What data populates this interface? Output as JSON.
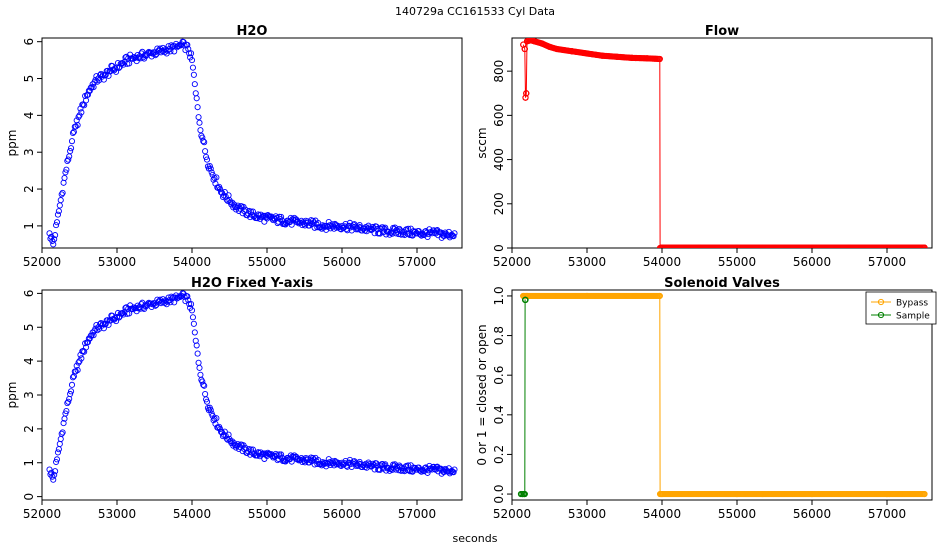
{
  "page": {
    "title": "140729a    CC161533   Cyl Data",
    "xlabel": "seconds"
  },
  "legend": {
    "items": [
      {
        "label": "Bypass",
        "color": "#FFA500"
      },
      {
        "label": "Sample",
        "color": "#008000"
      }
    ]
  },
  "chart_data": [
    {
      "id": "h2o",
      "type": "scatter",
      "title": "H2O",
      "xlabel": "",
      "ylabel": "ppm",
      "xlim": [
        52000,
        57600
      ],
      "ylim": [
        0.4,
        6.1
      ],
      "xticks": [
        52000,
        53000,
        54000,
        55000,
        56000,
        57000
      ],
      "yticks": [
        1,
        2,
        3,
        4,
        5,
        6
      ],
      "series": [
        {
          "color": "#0000FF",
          "marker": "open-circle",
          "x": [
            52100,
            52150,
            52200,
            52250,
            52300,
            52350,
            52400,
            52450,
            52500,
            52550,
            52600,
            52650,
            52700,
            52750,
            52800,
            52850,
            52900,
            53000,
            53100,
            53200,
            53300,
            53400,
            53500,
            53600,
            53700,
            53800,
            53850,
            53900,
            53950,
            54000,
            54050,
            54100,
            54150,
            54200,
            54300,
            54400,
            54500,
            54600,
            54700,
            54800,
            55000,
            55200,
            55400,
            55600,
            55800,
            56000,
            56200,
            56400,
            56600,
            56800,
            57000,
            57200,
            57400,
            57500
          ],
          "y": [
            0.8,
            0.5,
            1.1,
            1.7,
            2.3,
            2.8,
            3.3,
            3.7,
            4.0,
            4.3,
            4.55,
            4.75,
            4.9,
            5.0,
            5.05,
            5.1,
            5.2,
            5.3,
            5.45,
            5.55,
            5.6,
            5.65,
            5.7,
            5.75,
            5.8,
            5.85,
            5.9,
            5.9,
            5.8,
            5.5,
            4.6,
            3.8,
            3.3,
            2.8,
            2.3,
            1.9,
            1.7,
            1.5,
            1.4,
            1.3,
            1.2,
            1.15,
            1.1,
            1.05,
            1.0,
            1.0,
            0.95,
            0.9,
            0.85,
            0.85,
            0.8,
            0.8,
            0.75,
            0.8
          ]
        }
      ]
    },
    {
      "id": "flow",
      "type": "line",
      "title": "Flow",
      "xlabel": "",
      "ylabel": "sccm",
      "xlim": [
        52000,
        57600
      ],
      "ylim": [
        0,
        950
      ],
      "xticks": [
        52000,
        53000,
        54000,
        55000,
        56000,
        57000
      ],
      "yticks": [
        0,
        200,
        400,
        600,
        800
      ],
      "series": [
        {
          "color": "#FF0000",
          "marker": "open-circle",
          "x": [
            52150,
            52170,
            52180,
            52190,
            52200,
            52250,
            52300,
            52400,
            52500,
            52600,
            52800,
            53000,
            53200,
            53400,
            53600,
            53800,
            53970,
            53975,
            54000,
            54500,
            55000,
            55500,
            56000,
            56500,
            57000,
            57500
          ],
          "y": [
            920,
            900,
            680,
            700,
            935,
            940,
            935,
            925,
            910,
            900,
            890,
            880,
            870,
            865,
            860,
            858,
            855,
            0,
            2,
            2,
            2,
            2,
            2,
            2,
            2,
            2
          ]
        }
      ]
    },
    {
      "id": "h2o-fixed",
      "type": "scatter",
      "title": "H2O Fixed Y-axis",
      "xlabel": "",
      "ylabel": "ppm",
      "xlim": [
        52000,
        57600
      ],
      "ylim": [
        -0.1,
        6.1
      ],
      "xticks": [
        52000,
        53000,
        54000,
        55000,
        56000,
        57000
      ],
      "yticks": [
        0,
        1,
        2,
        3,
        4,
        5,
        6
      ],
      "series": [
        {
          "color": "#0000FF",
          "marker": "open-circle",
          "x": [
            52100,
            52150,
            52200,
            52250,
            52300,
            52350,
            52400,
            52450,
            52500,
            52550,
            52600,
            52650,
            52700,
            52750,
            52800,
            52850,
            52900,
            53000,
            53100,
            53200,
            53300,
            53400,
            53500,
            53600,
            53700,
            53800,
            53850,
            53900,
            53950,
            54000,
            54050,
            54100,
            54150,
            54200,
            54300,
            54400,
            54500,
            54600,
            54700,
            54800,
            55000,
            55200,
            55400,
            55600,
            55800,
            56000,
            56200,
            56400,
            56600,
            56800,
            57000,
            57200,
            57400,
            57500
          ],
          "y": [
            0.8,
            0.5,
            1.1,
            1.7,
            2.3,
            2.8,
            3.3,
            3.7,
            4.0,
            4.3,
            4.55,
            4.75,
            4.9,
            5.0,
            5.05,
            5.1,
            5.2,
            5.3,
            5.45,
            5.55,
            5.6,
            5.65,
            5.7,
            5.75,
            5.8,
            5.85,
            5.9,
            5.9,
            5.8,
            5.5,
            4.6,
            3.8,
            3.3,
            2.8,
            2.3,
            1.9,
            1.7,
            1.5,
            1.4,
            1.3,
            1.2,
            1.15,
            1.1,
            1.05,
            1.0,
            1.0,
            0.95,
            0.9,
            0.85,
            0.85,
            0.8,
            0.8,
            0.75,
            0.8
          ]
        }
      ]
    },
    {
      "id": "valves",
      "type": "line",
      "title": "Solenoid Valves",
      "xlabel": "",
      "ylabel": "0 or 1 = closed or open",
      "xlim": [
        52000,
        57600
      ],
      "ylim": [
        -0.03,
        1.03
      ],
      "xticks": [
        52000,
        53000,
        54000,
        55000,
        56000,
        57000
      ],
      "yticks": [
        0.0,
        0.2,
        0.4,
        0.6,
        0.8,
        1.0
      ],
      "legend_position": "top-right",
      "series": [
        {
          "name": "Bypass",
          "color": "#FFA500",
          "marker": "open-circle",
          "x": [
            52150,
            52200,
            53000,
            53970,
            53975,
            54000,
            55000,
            56000,
            57000,
            57500
          ],
          "y": [
            1,
            1,
            1,
            1,
            0,
            0,
            0,
            0,
            0,
            0
          ]
        },
        {
          "name": "Sample",
          "color": "#008000",
          "marker": "open-circle",
          "x": [
            52120,
            52140,
            52160,
            52170,
            52175,
            52180
          ],
          "y": [
            0,
            0,
            0,
            0,
            0.98,
            0.98
          ]
        }
      ]
    }
  ]
}
